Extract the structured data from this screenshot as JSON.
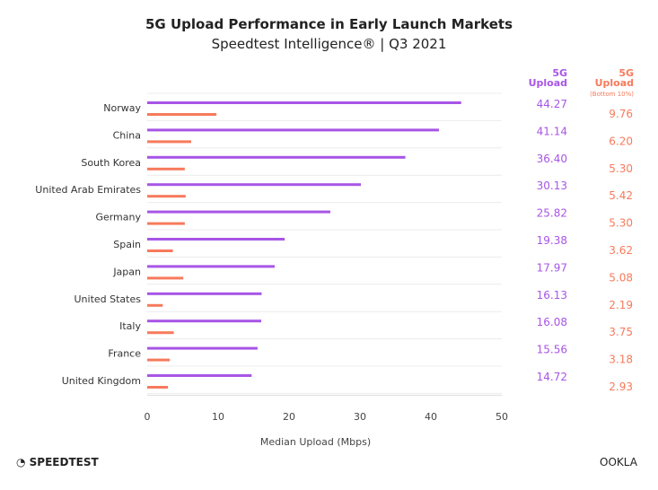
{
  "chart_data": {
    "type": "bar",
    "title": "5G Upload Performance in Early Launch Markets",
    "subtitle": "Speedtest Intelligence® | Q3 2021",
    "xlabel": "Median Upload (Mbps)",
    "xlim": [
      0,
      50
    ],
    "xticks": [
      0,
      10,
      20,
      30,
      40,
      50
    ],
    "grid": true,
    "categories": [
      "Norway",
      "China",
      "South Korea",
      "United Arab Emirates",
      "Germany",
      "Spain",
      "Japan",
      "United States",
      "Italy",
      "France",
      "United Kingdom"
    ],
    "series": [
      {
        "name": "5G Upload",
        "header": [
          "5G",
          "Upload"
        ],
        "color": "#a855e6",
        "values": [
          44.27,
          41.14,
          36.4,
          30.13,
          25.82,
          19.38,
          17.97,
          16.13,
          16.08,
          15.56,
          14.72
        ],
        "labels": [
          "44.27",
          "41.14",
          "36.40",
          "30.13",
          "25.82",
          "19.38",
          "17.97",
          "16.13",
          "16.08",
          "15.56",
          "14.72"
        ]
      },
      {
        "name": "5G Upload (Bottom 10%)",
        "header": [
          "5G",
          "Upload",
          "(Bottom 10%)"
        ],
        "color": "#f77a5c",
        "values": [
          9.76,
          6.2,
          5.3,
          5.42,
          5.3,
          3.62,
          5.08,
          2.19,
          3.75,
          3.18,
          2.93
        ],
        "labels": [
          "9.76",
          "6.20",
          "5.30",
          "5.42",
          "5.30",
          "3.62",
          "5.08",
          "2.19",
          "3.75",
          "3.18",
          "2.93"
        ]
      }
    ]
  },
  "footer": {
    "left_logo": "SPEEDTEST",
    "right_logo": "OOKLA"
  }
}
